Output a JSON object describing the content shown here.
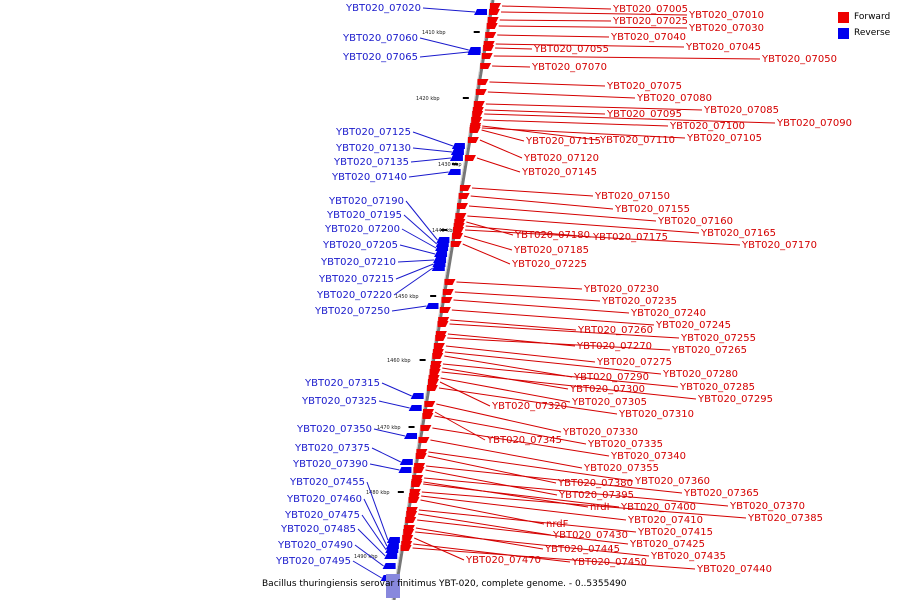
{
  "legend": {
    "forward_label": "Forward",
    "reverse_label": "Reverse",
    "forward_color": "#ee0000",
    "reverse_color": "#0000ee"
  },
  "caption": "Bacillus thuringiensis serovar finitimus YBT-020, complete genome. - 0..5355490",
  "axis_ticks": [
    "1410 kbp",
    "1420 kbp",
    "1430 kbp",
    "1440 kbp",
    "1450 kbp",
    "1460 kbp",
    "1470 kbp",
    "1480 kbp",
    "1490 kbp"
  ],
  "forward_genes": [
    "YBT020_07005",
    "YBT020_07010",
    "YBT020_07025",
    "YBT020_07030",
    "YBT020_07040",
    "YBT020_07045",
    "YBT020_07055",
    "YBT020_07050",
    "YBT020_07070",
    "YBT020_07075",
    "YBT020_07080",
    "YBT020_07085",
    "YBT020_07095",
    "YBT020_07100",
    "YBT020_07090",
    "YBT020_07115",
    "YBT020_07110",
    "YBT020_07105",
    "YBT020_07120",
    "YBT020_07145",
    "YBT020_07150",
    "YBT020_07155",
    "YBT020_07160",
    "YBT020_07165",
    "YBT020_07180",
    "YBT020_07175",
    "YBT020_07170",
    "YBT020_07185",
    "YBT020_07225",
    "YBT020_07230",
    "YBT020_07235",
    "YBT020_07240",
    "YBT020_07245",
    "YBT020_07260",
    "YBT020_07255",
    "YBT020_07270",
    "YBT020_07265",
    "YBT020_07275",
    "YBT020_07280",
    "YBT020_07290",
    "YBT020_07285",
    "YBT020_07300",
    "YBT020_07295",
    "YBT020_07305",
    "YBT020_07320",
    "YBT020_07310",
    "YBT020_07330",
    "YBT020_07345",
    "YBT020_07335",
    "YBT020_07340",
    "YBT020_07355",
    "YBT020_07360",
    "YBT020_07380",
    "YBT020_07365",
    "YBT020_07395",
    "YBT020_07370",
    "nrdI",
    "YBT020_07400",
    "YBT020_07385",
    "YBT020_07410",
    "nrdF",
    "YBT020_07415",
    "YBT020_07430",
    "YBT020_07425",
    "YBT020_07445",
    "YBT020_07435",
    "YBT020_07470",
    "YBT020_07450",
    "YBT020_07440"
  ],
  "reverse_genes": [
    "YBT020_07020",
    "YBT020_07060",
    "YBT020_07065",
    "YBT020_07125",
    "YBT020_07130",
    "YBT020_07135",
    "YBT020_07140",
    "YBT020_07190",
    "YBT020_07195",
    "YBT020_07200",
    "YBT020_07205",
    "YBT020_07210",
    "YBT020_07215",
    "YBT020_07220",
    "YBT020_07250",
    "YBT020_07315",
    "YBT020_07325",
    "YBT020_07350",
    "YBT020_07375",
    "YBT020_07390",
    "YBT020_07455",
    "YBT020_07460",
    "YBT020_07475",
    "YBT020_07485",
    "YBT020_07490",
    "YBT020_07495"
  ]
}
